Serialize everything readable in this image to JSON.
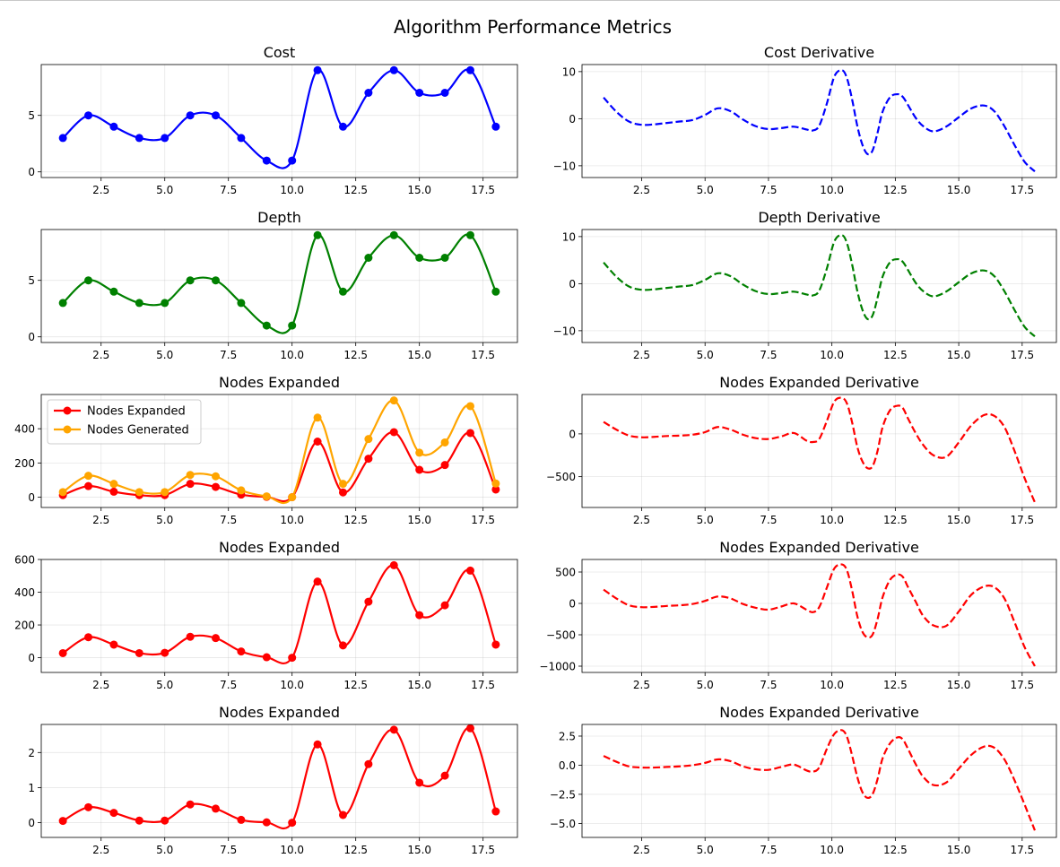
{
  "figure": {
    "title": "Algorithm Performance Metrics"
  },
  "chart_data": [
    {
      "type": "line",
      "title": "Cost",
      "xlabel": "",
      "ylabel": "",
      "xlim": [
        0.15,
        18.85
      ],
      "ylim": [
        -0.5,
        9.5
      ],
      "xticks": [
        2.5,
        5.0,
        7.5,
        10.0,
        12.5,
        15.0,
        17.5
      ],
      "yticks": [
        0,
        5
      ],
      "grid": true,
      "series": [
        {
          "color": "#0000ff",
          "style": "solid",
          "markers": true,
          "x": [
            1,
            2,
            3,
            4,
            5,
            6,
            7,
            8,
            9,
            10,
            11,
            12,
            13,
            14,
            15,
            16,
            17,
            18
          ],
          "y": [
            3,
            5,
            4,
            3,
            3,
            5,
            5,
            3,
            1,
            1,
            9,
            4,
            7,
            9,
            7,
            7,
            9,
            4
          ]
        }
      ]
    },
    {
      "type": "line",
      "title": "Cost Derivative",
      "xlabel": "",
      "ylabel": "",
      "xlim": [
        0.15,
        18.85
      ],
      "ylim": [
        -12.5,
        11.5
      ],
      "xticks": [
        2.5,
        5.0,
        7.5,
        10.0,
        12.5,
        15.0,
        17.5
      ],
      "yticks": [
        -10,
        0,
        10
      ],
      "grid": true,
      "series": [
        {
          "color": "#0000ff",
          "style": "dashed",
          "markers": false,
          "x": [
            1,
            1.5,
            2,
            2.5,
            3,
            3.5,
            4,
            4.5,
            5,
            5.5,
            6,
            6.5,
            7,
            7.5,
            8,
            8.5,
            9,
            9.25,
            9.5,
            9.8,
            10.1,
            10.4,
            10.6,
            10.8,
            11.0,
            11.2,
            11.4,
            11.6,
            11.8,
            12.0,
            12.3,
            12.6,
            12.8,
            13.0,
            13.3,
            13.6,
            14.0,
            14.5,
            15.0,
            15.5,
            16.0,
            16.4,
            16.8,
            17.2,
            17.6,
            18.0
          ],
          "y": [
            4.5,
            1.5,
            -0.6,
            -1.3,
            -1.2,
            -0.9,
            -0.6,
            -0.3,
            0.8,
            2.2,
            1.6,
            -0.2,
            -1.6,
            -2.2,
            -2.0,
            -1.7,
            -2.3,
            -2.5,
            -1.5,
            3.2,
            9.0,
            10.3,
            8.5,
            4.0,
            -1.5,
            -5.5,
            -7.5,
            -6.8,
            -3.0,
            1.5,
            4.6,
            5.2,
            4.6,
            2.9,
            0.2,
            -1.6,
            -2.7,
            -1.7,
            0.3,
            2.2,
            2.8,
            1.6,
            -1.6,
            -5.6,
            -9.2,
            -11.2
          ]
        }
      ]
    },
    {
      "type": "line",
      "title": "Depth",
      "xlabel": "",
      "ylabel": "",
      "xlim": [
        0.15,
        18.85
      ],
      "ylim": [
        -0.5,
        9.5
      ],
      "xticks": [
        2.5,
        5.0,
        7.5,
        10.0,
        12.5,
        15.0,
        17.5
      ],
      "yticks": [
        0,
        5
      ],
      "grid": true,
      "series": [
        {
          "color": "#008000",
          "style": "solid",
          "markers": true,
          "x": [
            1,
            2,
            3,
            4,
            5,
            6,
            7,
            8,
            9,
            10,
            11,
            12,
            13,
            14,
            15,
            16,
            17,
            18
          ],
          "y": [
            3,
            5,
            4,
            3,
            3,
            5,
            5,
            3,
            1,
            1,
            9,
            4,
            7,
            9,
            7,
            7,
            9,
            4
          ]
        }
      ]
    },
    {
      "type": "line",
      "title": "Depth Derivative",
      "xlabel": "",
      "ylabel": "",
      "xlim": [
        0.15,
        18.85
      ],
      "ylim": [
        -12.5,
        11.5
      ],
      "xticks": [
        2.5,
        5.0,
        7.5,
        10.0,
        12.5,
        15.0,
        17.5
      ],
      "yticks": [
        -10,
        0,
        10
      ],
      "grid": true,
      "series": [
        {
          "color": "#008000",
          "style": "dashed",
          "markers": false,
          "x": [
            1,
            1.5,
            2,
            2.5,
            3,
            3.5,
            4,
            4.5,
            5,
            5.5,
            6,
            6.5,
            7,
            7.5,
            8,
            8.5,
            9,
            9.25,
            9.5,
            9.8,
            10.1,
            10.4,
            10.6,
            10.8,
            11.0,
            11.2,
            11.4,
            11.6,
            11.8,
            12.0,
            12.3,
            12.6,
            12.8,
            13.0,
            13.3,
            13.6,
            14.0,
            14.5,
            15.0,
            15.5,
            16.0,
            16.4,
            16.8,
            17.2,
            17.6,
            18.0
          ],
          "y": [
            4.5,
            1.5,
            -0.6,
            -1.3,
            -1.2,
            -0.9,
            -0.6,
            -0.3,
            0.8,
            2.2,
            1.6,
            -0.2,
            -1.6,
            -2.2,
            -2.0,
            -1.7,
            -2.3,
            -2.5,
            -1.5,
            3.2,
            9.0,
            10.3,
            8.5,
            4.0,
            -1.5,
            -5.5,
            -7.5,
            -6.8,
            -3.0,
            1.5,
            4.6,
            5.2,
            4.6,
            2.9,
            0.2,
            -1.6,
            -2.7,
            -1.7,
            0.3,
            2.2,
            2.8,
            1.6,
            -1.6,
            -5.6,
            -9.2,
            -11.2
          ]
        }
      ]
    },
    {
      "type": "line",
      "title": "Nodes Expanded",
      "xlabel": "",
      "ylabel": "",
      "xlim": [
        0.15,
        18.85
      ],
      "ylim": [
        -60,
        600
      ],
      "xticks": [
        2.5,
        5.0,
        7.5,
        10.0,
        12.5,
        15.0,
        17.5
      ],
      "yticks": [
        0,
        200,
        400
      ],
      "grid": true,
      "legend": "upper left",
      "series": [
        {
          "name": "Nodes Expanded",
          "color": "#ff0000",
          "style": "solid",
          "markers": true,
          "x": [
            1,
            2,
            3,
            4,
            5,
            6,
            7,
            8,
            9,
            10,
            11,
            12,
            13,
            14,
            15,
            16,
            17,
            18
          ],
          "y": [
            12,
            65,
            32,
            12,
            12,
            78,
            60,
            15,
            2,
            0,
            325,
            28,
            225,
            380,
            160,
            188,
            375,
            45
          ]
        },
        {
          "name": "Nodes Generated",
          "color": "#ffa500",
          "style": "solid",
          "markers": true,
          "x": [
            1,
            2,
            3,
            4,
            5,
            6,
            7,
            8,
            9,
            10,
            11,
            12,
            13,
            14,
            15,
            16,
            17,
            18
          ],
          "y": [
            30,
            125,
            78,
            30,
            30,
            130,
            122,
            40,
            5,
            0,
            465,
            78,
            340,
            565,
            260,
            320,
            532,
            80
          ]
        }
      ]
    },
    {
      "type": "line",
      "title": "Nodes Expanded Derivative",
      "xlabel": "",
      "ylabel": "",
      "xlim": [
        0.15,
        18.85
      ],
      "ylim": [
        -860,
        460
      ],
      "xticks": [
        2.5,
        5.0,
        7.5,
        10.0,
        12.5,
        15.0,
        17.5
      ],
      "yticks": [
        -500,
        0
      ],
      "grid": true,
      "series": [
        {
          "color": "#ff0000",
          "style": "dashed",
          "markers": false,
          "x": [
            1,
            1.5,
            2,
            2.5,
            3,
            3.5,
            4,
            4.5,
            5,
            5.5,
            6,
            6.5,
            7,
            7.5,
            8,
            8.5,
            9,
            9.25,
            9.5,
            9.8,
            10.1,
            10.4,
            10.6,
            10.8,
            11.0,
            11.2,
            11.4,
            11.6,
            11.8,
            12.0,
            12.3,
            12.6,
            12.8,
            13.0,
            13.3,
            13.6,
            14.0,
            14.5,
            15.0,
            15.5,
            16.0,
            16.4,
            16.8,
            17.2,
            17.6,
            18.0
          ],
          "y": [
            140,
            50,
            -20,
            -40,
            -35,
            -25,
            -20,
            -10,
            20,
            80,
            50,
            -10,
            -50,
            -60,
            -30,
            10,
            -80,
            -95,
            -60,
            150,
            380,
            420,
            350,
            130,
            -150,
            -320,
            -400,
            -380,
            -200,
            80,
            280,
            330,
            300,
            180,
            10,
            -130,
            -250,
            -270,
            -100,
            100,
            220,
            210,
            80,
            -200,
            -520,
            -800
          ]
        }
      ]
    },
    {
      "type": "line",
      "title": "Nodes Expanded",
      "xlabel": "",
      "ylabel": "",
      "xlim": [
        0.15,
        18.85
      ],
      "ylim": [
        -90,
        600
      ],
      "xticks": [
        2.5,
        5.0,
        7.5,
        10.0,
        12.5,
        15.0,
        17.5
      ],
      "yticks": [
        0,
        200,
        400,
        600
      ],
      "grid": true,
      "series": [
        {
          "color": "#ff0000",
          "style": "solid",
          "markers": true,
          "x": [
            1,
            2,
            3,
            4,
            5,
            6,
            7,
            8,
            9,
            10,
            11,
            12,
            13,
            14,
            15,
            16,
            17,
            18
          ],
          "y": [
            28,
            125,
            80,
            28,
            30,
            128,
            120,
            38,
            3,
            0,
            465,
            75,
            342,
            565,
            260,
            320,
            532,
            80
          ]
        }
      ]
    },
    {
      "type": "line",
      "title": "Nodes Expanded Derivative",
      "xlabel": "",
      "ylabel": "",
      "xlim": [
        0.15,
        18.85
      ],
      "ylim": [
        -1100,
        700
      ],
      "xticks": [
        2.5,
        5.0,
        7.5,
        10.0,
        12.5,
        15.0,
        17.5
      ],
      "yticks": [
        -1000,
        -500,
        0,
        500
      ],
      "grid": true,
      "series": [
        {
          "color": "#ff0000",
          "style": "dashed",
          "markers": false,
          "x": [
            1,
            1.5,
            2,
            2.5,
            3,
            3.5,
            4,
            4.5,
            5,
            5.5,
            6,
            6.5,
            7,
            7.5,
            8,
            8.5,
            9,
            9.25,
            9.5,
            9.8,
            10.1,
            10.4,
            10.6,
            10.8,
            11.0,
            11.2,
            11.4,
            11.6,
            11.8,
            12.0,
            12.3,
            12.6,
            12.8,
            13.0,
            13.3,
            13.6,
            14.0,
            14.5,
            15.0,
            15.5,
            16.0,
            16.4,
            16.8,
            17.2,
            17.6,
            18.0
          ],
          "y": [
            220,
            80,
            -30,
            -60,
            -55,
            -40,
            -30,
            -10,
            40,
            110,
            80,
            -10,
            -70,
            -100,
            -50,
            0,
            -100,
            -140,
            -60,
            250,
            560,
            620,
            520,
            200,
            -200,
            -450,
            -540,
            -500,
            -250,
            100,
            380,
            460,
            420,
            260,
            30,
            -200,
            -350,
            -360,
            -130,
            140,
            270,
            260,
            80,
            -300,
            -700,
            -1000
          ]
        }
      ]
    },
    {
      "type": "line",
      "title": "Nodes Expanded",
      "xlabel": "",
      "ylabel": "",
      "xlim": [
        0.15,
        18.85
      ],
      "ylim": [
        -0.42,
        2.8
      ],
      "xticks": [
        2.5,
        5.0,
        7.5,
        10.0,
        12.5,
        15.0,
        17.5
      ],
      "yticks": [
        0,
        1,
        2
      ],
      "grid": true,
      "series": [
        {
          "color": "#ff0000",
          "style": "solid",
          "markers": true,
          "x": [
            1,
            2,
            3,
            4,
            5,
            6,
            7,
            8,
            9,
            10,
            11,
            12,
            13,
            14,
            15,
            16,
            17,
            18
          ],
          "y": [
            0.05,
            0.44,
            0.28,
            0.06,
            0.06,
            0.52,
            0.4,
            0.08,
            0.01,
            0.0,
            2.23,
            0.22,
            1.67,
            2.65,
            1.14,
            1.34,
            2.69,
            0.32
          ]
        }
      ]
    },
    {
      "type": "line",
      "title": "Nodes Expanded Derivative",
      "xlabel": "",
      "ylabel": "",
      "xlim": [
        0.15,
        18.85
      ],
      "ylim": [
        -6.2,
        3.5
      ],
      "xticks": [
        2.5,
        5.0,
        7.5,
        10.0,
        12.5,
        15.0,
        17.5
      ],
      "yticks": [
        -5.0,
        -2.5,
        0.0,
        2.5
      ],
      "grid": true,
      "series": [
        {
          "color": "#ff0000",
          "style": "dashed",
          "markers": false,
          "x": [
            1,
            1.5,
            2,
            2.5,
            3,
            3.5,
            4,
            4.5,
            5,
            5.5,
            6,
            6.5,
            7,
            7.5,
            8,
            8.5,
            9,
            9.25,
            9.5,
            9.8,
            10.1,
            10.4,
            10.6,
            10.8,
            11.0,
            11.2,
            11.4,
            11.6,
            11.8,
            12.0,
            12.3,
            12.6,
            12.8,
            13.0,
            13.3,
            13.6,
            14.0,
            14.5,
            15.0,
            15.5,
            16.0,
            16.4,
            16.8,
            17.2,
            17.6,
            18.0
          ],
          "y": [
            0.8,
            0.3,
            -0.1,
            -0.2,
            -0.2,
            -0.15,
            -0.1,
            0.0,
            0.2,
            0.5,
            0.35,
            -0.1,
            -0.35,
            -0.4,
            -0.15,
            0.05,
            -0.45,
            -0.55,
            -0.2,
            1.4,
            2.7,
            3.0,
            2.4,
            0.8,
            -1.0,
            -2.3,
            -2.8,
            -2.5,
            -1.2,
            0.6,
            1.9,
            2.4,
            2.2,
            1.4,
            0.1,
            -1.0,
            -1.7,
            -1.5,
            -0.3,
            0.9,
            1.6,
            1.5,
            0.5,
            -1.3,
            -3.4,
            -5.6
          ]
        }
      ]
    }
  ]
}
